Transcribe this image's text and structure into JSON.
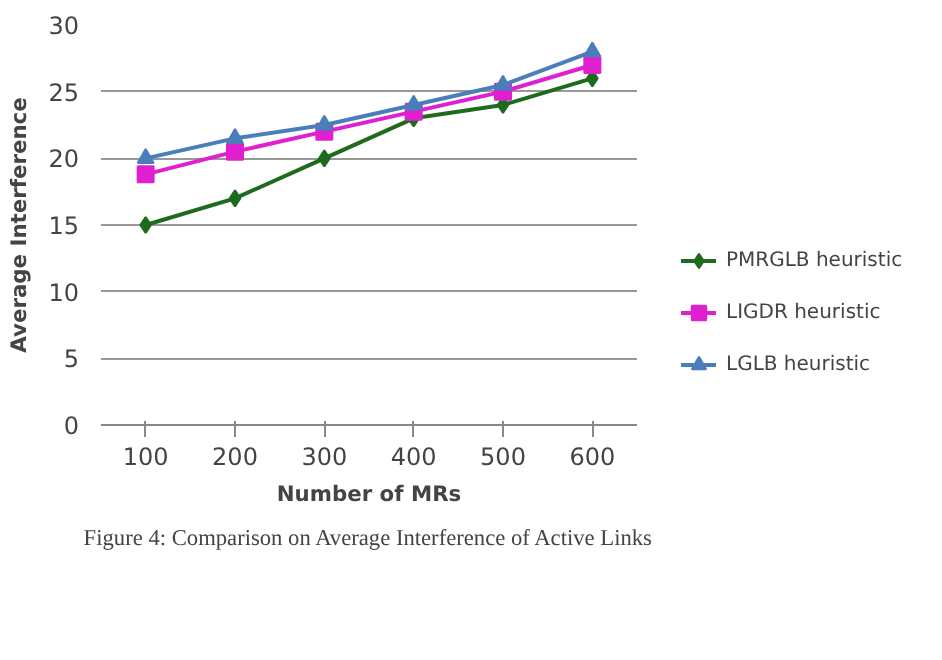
{
  "chart_data": {
    "type": "line",
    "title": "Figure 4: Comparison on Average Interference of Active Links",
    "xlabel": "Number of MRs",
    "ylabel": "Average Interference",
    "categories": [
      "100",
      "200",
      "300",
      "400",
      "500",
      "600"
    ],
    "series": [
      {
        "name": "PMRGLB heuristic",
        "color": "#1e6b1e",
        "marker": "diamond",
        "values": [
          15,
          17,
          20,
          23,
          24,
          26
        ]
      },
      {
        "name": "LIGDR heuristic",
        "color": "#e020d0",
        "marker": "square",
        "values": [
          18.8,
          20.5,
          22,
          23.5,
          25,
          27
        ]
      },
      {
        "name": "LGLB heuristic",
        "color": "#4a7ebb",
        "marker": "triangle",
        "values": [
          20,
          21.5,
          22.5,
          24,
          25.5,
          28
        ]
      }
    ],
    "ylim": [
      0,
      30
    ],
    "yticks": [
      0,
      5,
      10,
      15,
      20,
      25,
      30
    ],
    "grid": "y",
    "legend": "bottom right"
  }
}
